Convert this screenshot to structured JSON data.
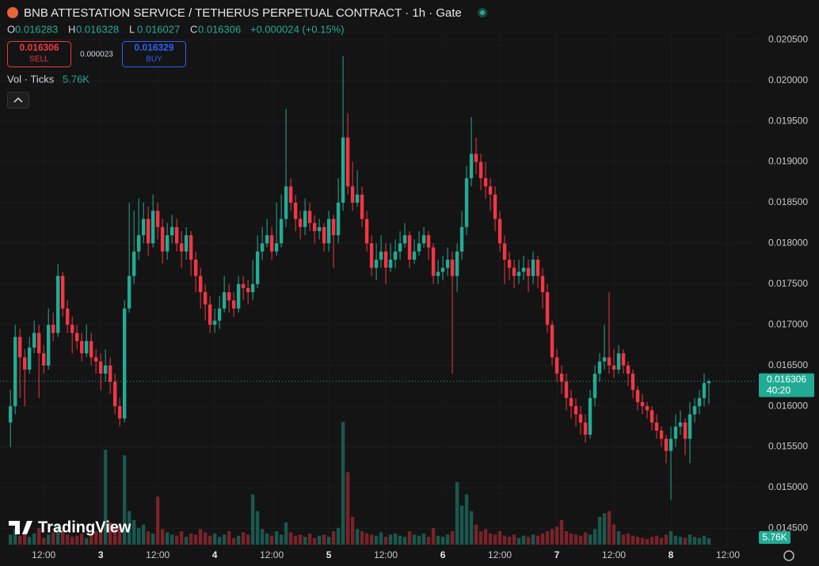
{
  "header": {
    "title": "BNB ATTESTATION SERVICE / TETHERUS PERPETUAL CONTRACT · 1h · Gate",
    "ohlc_keys": [
      "O",
      "H",
      "L",
      "C"
    ],
    "change": "+0.000024 (+0.15%)",
    "sell": {
      "price": "0.016306",
      "label": "SELL"
    },
    "spread": "0.000023",
    "buy": {
      "price": "0.016329",
      "label": "BUY"
    },
    "volume_legend": "Vol · Ticks",
    "logo": "TradingView"
  },
  "chart_data": {
    "type": "candlestick",
    "up_color": "#22ab94",
    "down_color": "#f23645",
    "grid": true,
    "ylim": [
      0.0143,
      0.0206
    ],
    "xlim": [
      -21.2,
      138
    ],
    "yticks": [
      {
        "value": 0.0145,
        "label": "0.014500"
      },
      {
        "value": 0.015,
        "label": "0.015000"
      },
      {
        "value": 0.0155,
        "label": "0.015500"
      },
      {
        "value": 0.016,
        "label": "0.016000"
      },
      {
        "value": 0.0165,
        "label": "0.016500"
      },
      {
        "value": 0.017,
        "label": "0.017000"
      },
      {
        "value": 0.0175,
        "label": "0.017500"
      },
      {
        "value": 0.018,
        "label": "0.018000"
      },
      {
        "value": 0.0185,
        "label": "0.018500"
      },
      {
        "value": 0.019,
        "label": "0.019000"
      },
      {
        "value": 0.0195,
        "label": "0.019500"
      },
      {
        "value": 0.02,
        "label": "0.020000"
      },
      {
        "value": 0.0205,
        "label": "0.020500"
      }
    ],
    "xticks": [
      {
        "value": -12,
        "label": "12:00"
      },
      {
        "value": 0,
        "label": "3"
      },
      {
        "value": 12,
        "label": "12:00"
      },
      {
        "value": 24,
        "label": "4"
      },
      {
        "value": 36,
        "label": "12:00"
      },
      {
        "value": 48,
        "label": "5"
      },
      {
        "value": 60,
        "label": "12:00"
      },
      {
        "value": 72,
        "label": "6"
      },
      {
        "value": 84,
        "label": "12:00"
      },
      {
        "value": 96,
        "label": "7"
      },
      {
        "value": 108,
        "label": "12:00"
      },
      {
        "value": 120,
        "label": "8"
      },
      {
        "value": 132,
        "label": "12:00"
      }
    ],
    "countdown": "40:20",
    "last_volume_label": "5.76K",
    "x": [
      -19,
      -18,
      -17,
      -16,
      -15,
      -14,
      -13,
      -12,
      -11,
      -10,
      -9,
      -8,
      -7,
      -6,
      -5,
      -4,
      -3,
      -2,
      -1,
      0,
      1,
      2,
      3,
      4,
      5,
      6,
      7,
      8,
      9,
      10,
      11,
      12,
      13,
      14,
      15,
      16,
      17,
      18,
      19,
      20,
      21,
      22,
      23,
      24,
      25,
      26,
      27,
      28,
      29,
      30,
      31,
      32,
      33,
      34,
      35,
      36,
      37,
      38,
      39,
      40,
      41,
      42,
      43,
      44,
      45,
      46,
      47,
      48,
      49,
      50,
      51,
      52,
      53,
      54,
      55,
      56,
      57,
      58,
      59,
      60,
      61,
      62,
      63,
      64,
      65,
      66,
      67,
      68,
      69,
      70,
      71,
      72,
      73,
      74,
      75,
      76,
      77,
      78,
      79,
      80,
      81,
      82,
      83,
      84,
      85,
      86,
      87,
      88,
      89,
      90,
      91,
      92,
      93,
      94,
      95,
      96,
      97,
      98,
      99,
      100,
      101,
      102,
      103,
      104,
      105,
      106,
      107,
      108,
      109,
      110,
      111,
      112,
      113,
      114,
      115,
      116,
      117,
      118,
      119,
      120,
      121,
      122,
      123,
      124,
      125,
      126,
      127,
      128
    ],
    "open": [
      0.0158,
      0.016,
      0.01685,
      0.0166,
      0.01645,
      0.01672,
      0.0169,
      0.01665,
      0.0165,
      0.017,
      0.0169,
      0.0176,
      0.0172,
      0.017,
      0.0169,
      0.0168,
      0.01665,
      0.0168,
      0.0166,
      0.01655,
      0.0164,
      0.0165,
      0.0163,
      0.016,
      0.01585,
      0.0172,
      0.0176,
      0.0179,
      0.0181,
      0.0183,
      0.018,
      0.0184,
      0.0182,
      0.0179,
      0.0181,
      0.0182,
      0.018,
      0.0179,
      0.0181,
      0.0178,
      0.0176,
      0.0174,
      0.01725,
      0.017,
      0.01705,
      0.0172,
      0.0174,
      0.0173,
      0.0172,
      0.0175,
      0.01745,
      0.0174,
      0.0175,
      0.0179,
      0.018,
      0.0181,
      0.0179,
      0.018,
      0.0183,
      0.0187,
      0.0185,
      0.0183,
      0.0182,
      0.0184,
      0.01825,
      0.01815,
      0.0182,
      0.018,
      0.0183,
      0.0181,
      0.0185,
      0.0193,
      0.0187,
      0.0185,
      0.0186,
      0.0183,
      0.018,
      0.0177,
      0.0178,
      0.0179,
      0.0177,
      0.0178,
      0.0179,
      0.018,
      0.0181,
      0.0178,
      0.0179,
      0.018,
      0.0181,
      0.01795,
      0.0176,
      0.01765,
      0.0177,
      0.0178,
      0.0176,
      0.0179,
      0.0182,
      0.0188,
      0.0191,
      0.019,
      0.0188,
      0.0187,
      0.0186,
      0.0183,
      0.018,
      0.0178,
      0.0177,
      0.0176,
      0.01765,
      0.0177,
      0.0176,
      0.0178,
      0.0176,
      0.0174,
      0.017,
      0.0166,
      0.0164,
      0.0163,
      0.0161,
      0.016,
      0.0159,
      0.0158,
      0.01565,
      0.0161,
      0.0164,
      0.01655,
      0.0166,
      0.0165,
      0.01645,
      0.01665,
      0.0165,
      0.0164,
      0.0162,
      0.01605,
      0.016,
      0.01595,
      0.0158,
      0.0157,
      0.0156,
      0.01545,
      0.0156,
      0.01575,
      0.0158,
      0.0156,
      0.0159,
      0.016,
      0.0161,
      0.016283
    ],
    "high": [
      0.0162,
      0.017,
      0.01695,
      0.0167,
      0.01685,
      0.01705,
      0.017,
      0.01675,
      0.0172,
      0.01715,
      0.01775,
      0.01765,
      0.0173,
      0.0171,
      0.017,
      0.0169,
      0.017,
      0.0169,
      0.0167,
      0.01665,
      0.0167,
      0.0166,
      0.0164,
      0.0161,
      0.0173,
      0.0185,
      0.0184,
      0.01855,
      0.0185,
      0.01845,
      0.0186,
      0.0185,
      0.0183,
      0.01825,
      0.01835,
      0.0183,
      0.01815,
      0.0182,
      0.01815,
      0.0179,
      0.0177,
      0.0175,
      0.01735,
      0.0172,
      0.01735,
      0.0176,
      0.0175,
      0.0174,
      0.0176,
      0.0176,
      0.01755,
      0.0178,
      0.0181,
      0.0182,
      0.0183,
      0.0182,
      0.0185,
      0.0186,
      0.01965,
      0.0188,
      0.0186,
      0.0184,
      0.01855,
      0.0185,
      0.01835,
      0.0183,
      0.01825,
      0.0184,
      0.01835,
      0.0188,
      0.0203,
      0.0196,
      0.019,
      0.0189,
      0.0187,
      0.0184,
      0.0181,
      0.018,
      0.0181,
      0.018,
      0.018,
      0.01805,
      0.01815,
      0.01825,
      0.01815,
      0.01805,
      0.01815,
      0.0182,
      0.01815,
      0.018,
      0.0178,
      0.01785,
      0.01795,
      0.0179,
      0.018,
      0.0184,
      0.01895,
      0.01955,
      0.0193,
      0.0191,
      0.019,
      0.0188,
      0.0187,
      0.0184,
      0.0181,
      0.0179,
      0.0178,
      0.0178,
      0.01785,
      0.0178,
      0.0179,
      0.01785,
      0.0177,
      0.0175,
      0.01705,
      0.0167,
      0.0165,
      0.0164,
      0.0162,
      0.0161,
      0.016,
      0.0159,
      0.0162,
      0.0165,
      0.01665,
      0.017,
      0.0174,
      0.0167,
      0.01675,
      0.0167,
      0.01655,
      0.01645,
      0.01625,
      0.01615,
      0.01605,
      0.016,
      0.0159,
      0.01575,
      0.01565,
      0.01575,
      0.0159,
      0.01595,
      0.01585,
      0.01605,
      0.0161,
      0.0162,
      0.0164,
      0.016328
    ],
    "low": [
      0.0155,
      0.0159,
      0.0161,
      0.016,
      0.0164,
      0.01665,
      0.0161,
      0.0164,
      0.01645,
      0.0168,
      0.01685,
      0.0171,
      0.0169,
      0.01665,
      0.0167,
      0.01655,
      0.0166,
      0.0165,
      0.0164,
      0.0162,
      0.0163,
      0.01615,
      0.0159,
      0.01575,
      0.0158,
      0.01715,
      0.0175,
      0.0178,
      0.018,
      0.01785,
      0.01795,
      0.01805,
      0.01775,
      0.0178,
      0.018,
      0.0179,
      0.0177,
      0.0178,
      0.0176,
      0.0174,
      0.0172,
      0.01705,
      0.0169,
      0.0169,
      0.01695,
      0.01715,
      0.01715,
      0.0171,
      0.01715,
      0.0173,
      0.01725,
      0.0173,
      0.01745,
      0.0178,
      0.01795,
      0.0178,
      0.01785,
      0.01795,
      0.0182,
      0.0184,
      0.01815,
      0.01805,
      0.0181,
      0.01815,
      0.018,
      0.01805,
      0.0179,
      0.0179,
      0.0177,
      0.018,
      0.0184,
      0.0186,
      0.0184,
      0.01845,
      0.0182,
      0.0179,
      0.0176,
      0.01755,
      0.0177,
      0.0175,
      0.01765,
      0.0177,
      0.0178,
      0.01795,
      0.0177,
      0.01775,
      0.01785,
      0.01795,
      0.0178,
      0.0175,
      0.0175,
      0.01755,
      0.0176,
      0.0164,
      0.0174,
      0.0178,
      0.0181,
      0.0187,
      0.01885,
      0.01865,
      0.01855,
      0.0184,
      0.01815,
      0.0179,
      0.0175,
      0.01755,
      0.01745,
      0.0175,
      0.01755,
      0.0174,
      0.0175,
      0.01745,
      0.0172,
      0.0169,
      0.0165,
      0.0163,
      0.01615,
      0.01595,
      0.01585,
      0.01575,
      0.01565,
      0.01555,
      0.0156,
      0.016,
      0.0163,
      0.01645,
      0.0164,
      0.01635,
      0.0164,
      0.0164,
      0.01625,
      0.0161,
      0.01595,
      0.0159,
      0.01585,
      0.0157,
      0.0156,
      0.0155,
      0.0153,
      0.01485,
      0.0155,
      0.01565,
      0.0154,
      0.0153,
      0.0158,
      0.0159,
      0.016,
      0.016027
    ],
    "close": [
      0.016,
      0.01685,
      0.0166,
      0.01645,
      0.01672,
      0.0169,
      0.01665,
      0.0165,
      0.017,
      0.0169,
      0.0176,
      0.0172,
      0.017,
      0.0169,
      0.0168,
      0.01665,
      0.0168,
      0.0166,
      0.01655,
      0.0164,
      0.0165,
      0.0163,
      0.016,
      0.01585,
      0.0172,
      0.0176,
      0.0179,
      0.0181,
      0.0183,
      0.018,
      0.0184,
      0.0182,
      0.0179,
      0.0181,
      0.0182,
      0.018,
      0.0179,
      0.0181,
      0.0178,
      0.0176,
      0.0174,
      0.01725,
      0.017,
      0.01705,
      0.0172,
      0.0174,
      0.0173,
      0.0172,
      0.0175,
      0.01745,
      0.0174,
      0.0175,
      0.0179,
      0.018,
      0.0181,
      0.0179,
      0.018,
      0.0183,
      0.0187,
      0.0185,
      0.0183,
      0.0182,
      0.0184,
      0.01825,
      0.01815,
      0.0182,
      0.018,
      0.0183,
      0.0181,
      0.0185,
      0.0193,
      0.0187,
      0.0185,
      0.0186,
      0.0183,
      0.018,
      0.0177,
      0.0178,
      0.0179,
      0.0177,
      0.0178,
      0.0179,
      0.018,
      0.0181,
      0.0178,
      0.0179,
      0.018,
      0.0181,
      0.01795,
      0.0176,
      0.01765,
      0.0177,
      0.0178,
      0.0176,
      0.0179,
      0.0182,
      0.0188,
      0.0191,
      0.019,
      0.0188,
      0.0187,
      0.0186,
      0.0183,
      0.018,
      0.0178,
      0.0177,
      0.0176,
      0.01765,
      0.0177,
      0.0176,
      0.0178,
      0.0176,
      0.0174,
      0.017,
      0.0166,
      0.0164,
      0.0163,
      0.0161,
      0.016,
      0.0159,
      0.0158,
      0.01565,
      0.0161,
      0.0164,
      0.01655,
      0.0166,
      0.0165,
      0.01645,
      0.01665,
      0.0165,
      0.0164,
      0.0162,
      0.01605,
      0.016,
      0.01595,
      0.0158,
      0.0157,
      0.0156,
      0.01545,
      0.0156,
      0.01575,
      0.0158,
      0.0156,
      0.0159,
      0.016,
      0.0161,
      0.016283,
      0.016306
    ],
    "volume": [
      9000,
      14000,
      8000,
      12000,
      7000,
      10000,
      15000,
      6000,
      9000,
      11000,
      18000,
      13000,
      9000,
      7000,
      8000,
      10000,
      6000,
      9000,
      12000,
      14000,
      85000,
      20000,
      16000,
      18000,
      80000,
      30000,
      22000,
      15000,
      18000,
      12000,
      10000,
      43000,
      14000,
      11000,
      9000,
      8000,
      12000,
      7000,
      10000,
      9000,
      14000,
      11000,
      8000,
      10000,
      7000,
      9000,
      12000,
      6000,
      8000,
      11000,
      9000,
      45000,
      30000,
      14000,
      10000,
      8000,
      12000,
      9000,
      20000,
      11000,
      8000,
      9000,
      7000,
      10000,
      6000,
      8000,
      9000,
      7000,
      12000,
      15000,
      110000,
      65000,
      25000,
      14000,
      12000,
      10000,
      9000,
      8000,
      11000,
      7000,
      9000,
      10000,
      8000,
      7000,
      12000,
      9000,
      8000,
      10000,
      7000,
      15000,
      8000,
      7000,
      9000,
      12000,
      56000,
      35000,
      45000,
      30000,
      18000,
      12000,
      14000,
      10000,
      9000,
      12000,
      8000,
      7000,
      9000,
      6000,
      8000,
      7000,
      9000,
      8000,
      10000,
      12000,
      14000,
      16000,
      22000,
      12000,
      10000,
      9000,
      8000,
      11000,
      9000,
      14000,
      25000,
      28000,
      30000,
      18000,
      12000,
      9000,
      10000,
      8000,
      7000,
      6000,
      5000,
      7000,
      8000,
      6000,
      9000,
      12000,
      8000,
      7000,
      6000,
      9000,
      7000,
      6000,
      8000,
      5760
    ]
  }
}
